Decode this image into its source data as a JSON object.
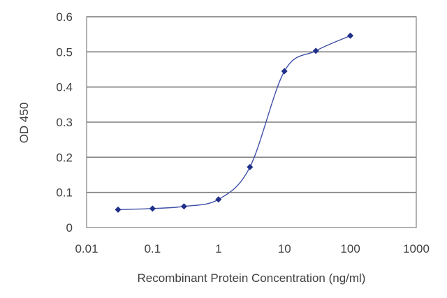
{
  "chart_data": {
    "type": "scatter",
    "xscale": "log",
    "xlabel": "Recombinant Protein Concentration (ng/ml)",
    "ylabel": "OD 450",
    "xlim": [
      0.01,
      1000
    ],
    "ylim": [
      0,
      0.6
    ],
    "xticks": [
      "0.01",
      "0.1",
      "1",
      "10",
      "100",
      "1000"
    ],
    "yticks": [
      "0",
      "0.1",
      "0.2",
      "0.3",
      "0.4",
      "0.5",
      "0.6"
    ],
    "grid": "horizontal",
    "legend": "none",
    "series": [
      {
        "x": [
          0.03,
          0.1,
          0.3,
          1,
          3,
          10,
          30,
          100
        ],
        "y": [
          0.051,
          0.054,
          0.06,
          0.08,
          0.172,
          0.445,
          0.503,
          0.546
        ]
      }
    ],
    "colors": {
      "line": "#3f4fa8",
      "marker": "#1f2f8a",
      "grid": "#7f7f7f"
    }
  }
}
